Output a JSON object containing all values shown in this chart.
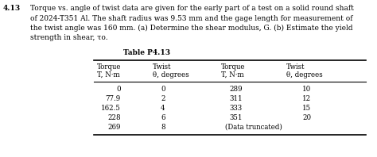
{
  "problem_number": "4.13",
  "problem_lines": [
    "Torque vs. angle of twist data are given for the early part of a test on a solid round shaft",
    "of 2024-T351 Al. The shaft radius was 9.53 mm and the gage length for measurement of",
    "the twist angle was 160 mm. (a) Determine the shear modulus, G. (b) Estimate the yield",
    "strength in shear, τo."
  ],
  "table_title": "Table P4.13",
  "col_headers_row1": [
    "Torque",
    "Twist",
    "Torque",
    "Twist"
  ],
  "col_headers_row2": [
    "T, N·m",
    "θ, degrees",
    "T, N·m",
    "θ, degrees"
  ],
  "col1_data": [
    "0",
    "77.9",
    "162.5",
    "228",
    "269"
  ],
  "col2_data": [
    "0",
    "2",
    "4",
    "6",
    "8"
  ],
  "col3_data": [
    "289",
    "311",
    "333",
    "351",
    ""
  ],
  "col4_data": [
    "10",
    "12",
    "15",
    "20",
    ""
  ],
  "last_row_note": "(Data truncated)",
  "background_color": "#ffffff",
  "text_color": "#000000",
  "font_size_body": 6.5,
  "font_size_problem_num": 6.5,
  "font_size_table_header": 6.2,
  "font_size_table_data": 6.2,
  "font_size_table_title": 6.5
}
